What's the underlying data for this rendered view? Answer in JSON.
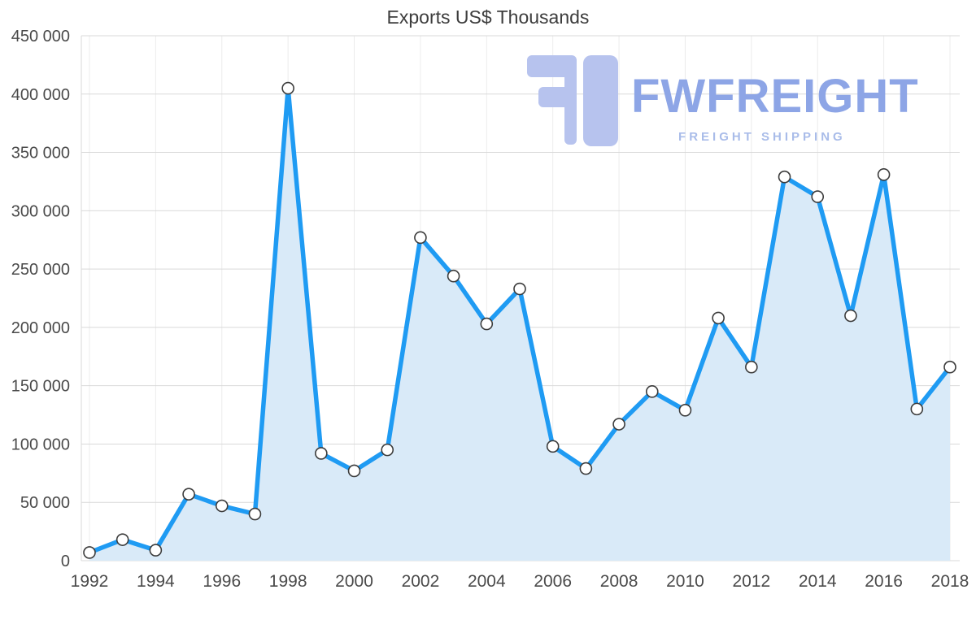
{
  "page": {
    "background": "#ffffff"
  },
  "chart_data": {
    "type": "area",
    "title": "Exports US$ Thousands",
    "x": [
      1992,
      1993,
      1994,
      1995,
      1996,
      1997,
      1998,
      1999,
      2000,
      2001,
      2002,
      2003,
      2004,
      2005,
      2006,
      2007,
      2008,
      2009,
      2010,
      2011,
      2012,
      2013,
      2014,
      2015,
      2016,
      2017,
      2018
    ],
    "values": [
      7000,
      18000,
      9000,
      57000,
      47000,
      40000,
      405000,
      92000,
      77000,
      95000,
      277000,
      244000,
      203000,
      233000,
      98000,
      79000,
      117000,
      145000,
      129000,
      208000,
      166000,
      329000,
      312000,
      210000,
      331000,
      130000,
      166000
    ],
    "xlabel": "",
    "ylabel": "",
    "ylim": [
      0,
      450000
    ],
    "y_tick_step": 50000,
    "x_tick_step": 2,
    "grid": true,
    "legend": "none",
    "marker": "circle-open",
    "colors": {
      "line": "#1f9bf3",
      "fill": "#d9eaf8",
      "marker_fill": "#ffffff",
      "marker_stroke": "#3c3c3c",
      "grid": "#d9d9d9",
      "grid_light": "#ececec",
      "axis_text": "#4a4a4a",
      "title": "#3d3d3d"
    }
  },
  "logo": {
    "name": "FWFREIGHT",
    "tagline": "FREIGHT SHIPPING",
    "name_color": "#8da5e6",
    "tagline_color": "#a9bce9",
    "icon_color": "#b7c3ee"
  }
}
